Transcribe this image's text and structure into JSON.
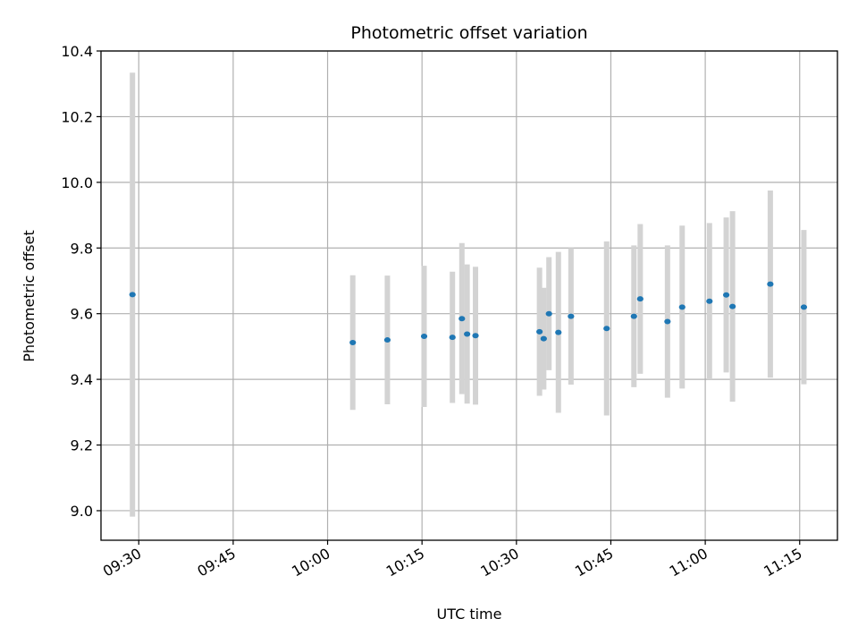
{
  "chart_data": {
    "type": "scatter",
    "title": "Photometric offset variation",
    "xlabel": "UTC time",
    "ylabel": "Photometric offset",
    "x_tick_labels": [
      "09:30",
      "09:45",
      "10:00",
      "10:15",
      "10:30",
      "10:45",
      "11:00",
      "11:15"
    ],
    "y_tick_labels": [
      "9.0",
      "9.2",
      "9.4",
      "9.6",
      "9.8",
      "10.0",
      "10.2",
      "10.4"
    ],
    "xlim": [
      "09:24",
      "11:21"
    ],
    "ylim": [
      8.91,
      10.4
    ],
    "grid": true,
    "marker_color": "#1f77b4",
    "errorbar_color": "#d3d3d3",
    "points": [
      {
        "time": "09:29:00",
        "y": 9.658,
        "err": 0.676
      },
      {
        "time": "10:04:00",
        "y": 9.512,
        "err": 0.205
      },
      {
        "time": "10:09:30",
        "y": 9.52,
        "err": 0.196
      },
      {
        "time": "10:15:20",
        "y": 9.531,
        "err": 0.215
      },
      {
        "time": "10:19:50",
        "y": 9.528,
        "err": 0.2
      },
      {
        "time": "10:21:20",
        "y": 9.585,
        "err": 0.23
      },
      {
        "time": "10:22:10",
        "y": 9.538,
        "err": 0.212
      },
      {
        "time": "10:23:30",
        "y": 9.533,
        "err": 0.21
      },
      {
        "time": "10:33:40",
        "y": 9.545,
        "err": 0.195
      },
      {
        "time": "10:34:20",
        "y": 9.524,
        "err": 0.155
      },
      {
        "time": "10:35:10",
        "y": 9.6,
        "err": 0.172
      },
      {
        "time": "10:36:40",
        "y": 9.543,
        "err": 0.245
      },
      {
        "time": "10:38:40",
        "y": 9.592,
        "err": 0.208
      },
      {
        "time": "10:44:20",
        "y": 9.555,
        "err": 0.265
      },
      {
        "time": "10:48:40",
        "y": 9.592,
        "err": 0.216
      },
      {
        "time": "10:49:40",
        "y": 9.645,
        "err": 0.228
      },
      {
        "time": "10:54:00",
        "y": 9.576,
        "err": 0.232
      },
      {
        "time": "10:56:20",
        "y": 9.62,
        "err": 0.248
      },
      {
        "time": "11:00:40",
        "y": 9.638,
        "err": 0.238
      },
      {
        "time": "11:03:20",
        "y": 9.657,
        "err": 0.236
      },
      {
        "time": "11:04:20",
        "y": 9.622,
        "err": 0.29
      },
      {
        "time": "11:10:20",
        "y": 9.69,
        "err": 0.285
      },
      {
        "time": "11:15:40",
        "y": 9.62,
        "err": 0.235
      }
    ]
  }
}
